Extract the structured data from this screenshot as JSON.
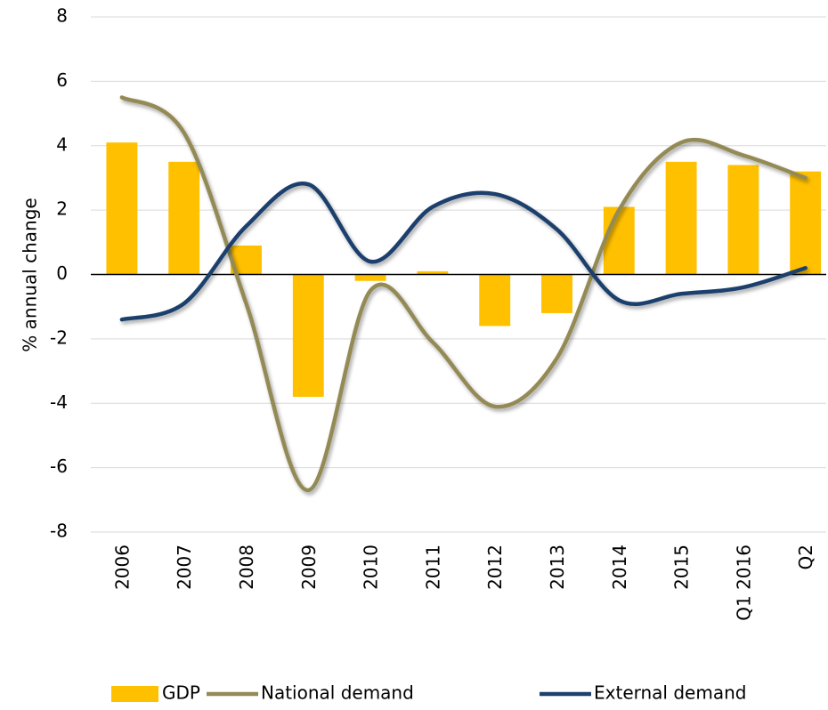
{
  "chart_data": {
    "type": "combo",
    "y_label": "% annual change",
    "categories": [
      "2006",
      "2007",
      "2008",
      "2009",
      "2010",
      "2011",
      "2012",
      "2013",
      "2014",
      "2015",
      "Q1 2016",
      "Q2"
    ],
    "series": [
      {
        "name": "GDP",
        "type": "bar",
        "color": "#ffc000",
        "values": [
          4.1,
          3.5,
          0.9,
          -3.8,
          -0.2,
          0.1,
          -1.6,
          -1.2,
          2.1,
          3.5,
          3.4,
          3.2
        ]
      },
      {
        "name": "National demand",
        "type": "line",
        "color": "#948a54",
        "values": [
          5.5,
          4.4,
          -0.9,
          -6.7,
          -0.5,
          -2.1,
          -4.1,
          -2.6,
          2.0,
          4.1,
          3.7,
          3.0
        ]
      },
      {
        "name": "External demand",
        "type": "line",
        "color": "#1f3f6e",
        "values": [
          -1.4,
          -0.9,
          1.5,
          2.8,
          0.4,
          2.1,
          2.5,
          1.4,
          -0.8,
          -0.6,
          -0.4,
          0.2
        ]
      }
    ],
    "ylim": [
      -8,
      8
    ],
    "yticks": [
      -8,
      -6,
      -4,
      -2,
      0,
      2,
      4,
      6,
      8
    ],
    "grid": true,
    "legend": "bottom"
  }
}
